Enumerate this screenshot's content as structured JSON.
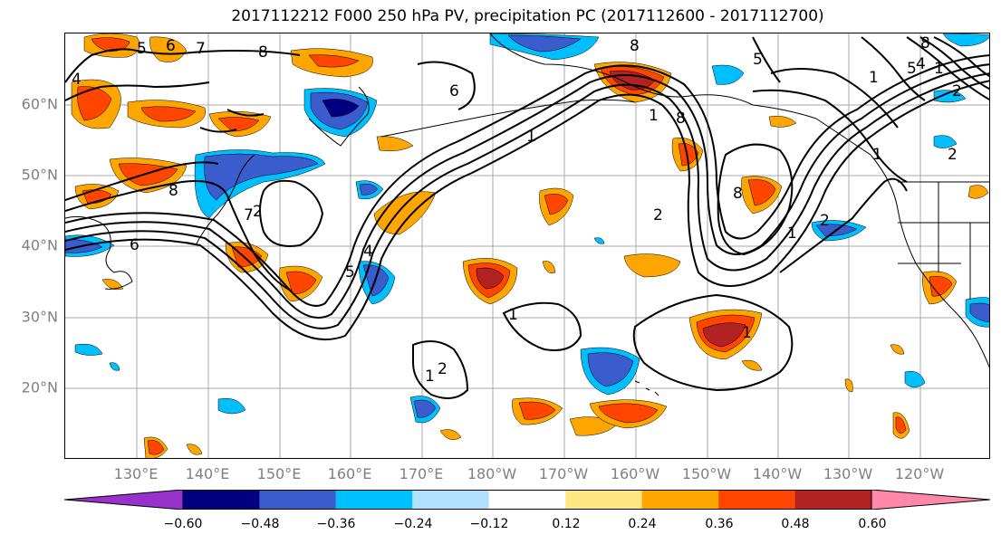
{
  "title": "2017112212 F000 250 hPa PV, precipitation PC (2017112600 - 2017112700)",
  "lat_labels": [
    "60°N",
    "50°N",
    "40°N",
    "30°N",
    "20°N"
  ],
  "lon_labels": [
    "130°E",
    "140°E",
    "150°E",
    "160°E",
    "170°E",
    "180°W",
    "170°W",
    "160°W",
    "150°W",
    "140°W",
    "130°W",
    "120°W"
  ],
  "colorbar": {
    "colors": [
      "#9932cc",
      "#000080",
      "#3a5ccc",
      "#00bfff",
      "#b0e2ff",
      "#ffffff",
      "#ffe680",
      "#ffa500",
      "#ff4500",
      "#b22222",
      "#ff88aa"
    ],
    "tick_labels": [
      "−0.60",
      "−0.48",
      "−0.36",
      "−0.24",
      "−0.12",
      "0.12",
      "0.24",
      "0.36",
      "0.48",
      "0.60"
    ]
  },
  "contour_labels": [
    "5",
    "6",
    "7",
    "8",
    "4",
    "1",
    "2",
    "8",
    "1",
    "2",
    "8",
    "6",
    "5",
    "4",
    "6",
    "7",
    "8",
    "8",
    "1",
    "2",
    "1",
    "1",
    "1",
    "2",
    "5",
    "4",
    "2",
    "1",
    "8",
    "1",
    "5",
    "1",
    "2"
  ]
}
